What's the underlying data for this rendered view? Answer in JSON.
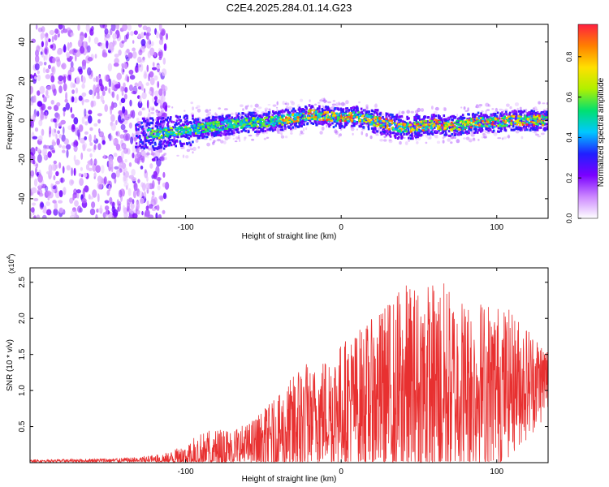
{
  "title": "C2E4.2025.284.01.14.G23",
  "chart_data": [
    {
      "type": "heatmap",
      "name": "spectrogram",
      "xlabel": "Height of straight line (km)",
      "ylabel": "Frequency (Hz)",
      "xlim": [
        -200,
        133
      ],
      "ylim": [
        -50,
        49
      ],
      "xticks": [
        -100,
        0,
        100
      ],
      "yticks": [
        -40,
        -20,
        0,
        20,
        40
      ],
      "xtick_labels": [
        "-100",
        "0",
        "100"
      ],
      "ytick_labels": [
        "-40",
        "-20",
        "0",
        "20",
        "40"
      ],
      "noise_region_end_km": -118,
      "signal_track_hz": {
        "x": [
          -130,
          -120,
          -110,
          -100,
          -90,
          -80,
          -70,
          -60,
          -50,
          -40,
          -30,
          -20,
          -10,
          0,
          10,
          20,
          30,
          40,
          50,
          60,
          70,
          80,
          90,
          100,
          110,
          120,
          133
        ],
        "y": [
          -6,
          -7,
          -6,
          -5,
          -4,
          -3,
          -2,
          -1,
          -1,
          0,
          1,
          3,
          2,
          1,
          2,
          0,
          -2,
          -4,
          -3,
          -2,
          -3,
          -2,
          -1,
          -1,
          0,
          0,
          0
        ]
      },
      "colorbar": {
        "label": "Normalized spectral amplitude",
        "range": [
          0.0,
          0.96
        ],
        "ticks": [
          0.0,
          0.2,
          0.4,
          0.6,
          0.8
        ],
        "tick_labels": [
          "0.0",
          "0.2",
          "0.4",
          "0.6",
          "0.8"
        ],
        "colors": [
          "#ffffff",
          "#cc88ff",
          "#7a00ff",
          "#2020ff",
          "#00c8ff",
          "#00e070",
          "#b0f000",
          "#ffe000",
          "#ff8000",
          "#ff2040"
        ]
      }
    },
    {
      "type": "line",
      "name": "snr",
      "xlabel": "Height of straight line (km)",
      "ylabel": "SNR (10 * v/v)",
      "scale_label": "(x10",
      "scale_exponent": "4",
      "xlim": [
        -200,
        133
      ],
      "ylim": [
        0,
        2.7
      ],
      "xticks": [
        -100,
        0,
        100
      ],
      "yticks": [
        0.5,
        1.0,
        1.5,
        2.0,
        2.5
      ],
      "xtick_labels": [
        "-100",
        "0",
        "100"
      ],
      "ytick_labels": [
        "0.5",
        "1.0",
        "1.5",
        "2.0",
        "2.5"
      ],
      "color": "#e83030",
      "envelope": {
        "x": [
          -200,
          -150,
          -130,
          -110,
          -100,
          -90,
          -80,
          -70,
          -60,
          -50,
          -40,
          -30,
          -25,
          -20,
          -10,
          0,
          10,
          20,
          30,
          40,
          50,
          60,
          70,
          80,
          90,
          100,
          110,
          120,
          133
        ],
        "base": [
          0.02,
          0.03,
          0.03,
          0.05,
          0.08,
          0.12,
          0.15,
          0.18,
          0.22,
          0.3,
          0.38,
          0.45,
          0.5,
          0.6,
          0.7,
          0.78,
          0.85,
          0.9,
          0.95,
          1.0,
          1.02,
          1.05,
          1.05,
          1.08,
          1.08,
          1.08,
          1.1,
          1.12,
          1.15
        ],
        "amp": [
          0.02,
          0.03,
          0.05,
          0.1,
          0.18,
          0.3,
          0.32,
          0.32,
          0.32,
          0.45,
          0.55,
          0.8,
          1.05,
          0.7,
          0.8,
          0.9,
          1.0,
          1.1,
          1.3,
          1.5,
          1.45,
          1.5,
          1.45,
          1.2,
          1.2,
          1.15,
          1.0,
          0.8,
          0.5
        ]
      }
    }
  ]
}
